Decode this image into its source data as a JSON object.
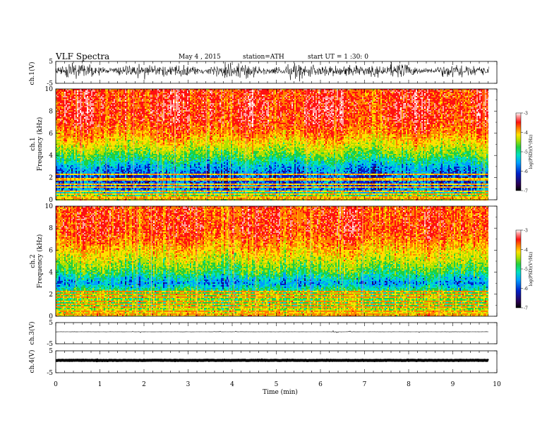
{
  "header": {
    "title": "VLF  Spectra",
    "date": "May 4  , 2015",
    "station": "station=ATH",
    "start": "start  UT  =  1  :30: 0"
  },
  "chart_data": {
    "type": "heatmap",
    "x": {
      "label": "Time  (min)",
      "range": [
        0,
        10
      ],
      "ticks": [
        "0",
        "1",
        "2",
        "3",
        "4",
        "5",
        "6",
        "7",
        "8",
        "9",
        "10"
      ],
      "data_end": 9.82
    },
    "panels": [
      {
        "kind": "waveform",
        "ylabel": "ch.1(V)",
        "ylim": [
          -5,
          5
        ],
        "yticks": [
          "5",
          "-5"
        ],
        "trace": "noisy-broadband",
        "amplitude": 1.0
      },
      {
        "kind": "spectrogram",
        "ylabel": "ch.1",
        "ylabel2": "Frequency  (kHz)",
        "ylim": [
          0,
          10
        ],
        "yticks": [
          "10",
          "8",
          "6",
          "4",
          "2",
          "0"
        ],
        "colorbar": {
          "label": "log(PSD)(V²/Hz)",
          "range": [
            -7,
            -3
          ],
          "ticks": [
            "-3",
            "-4",
            "-5",
            "-6",
            "-7"
          ]
        },
        "profile_khz": [
          0,
          1,
          2,
          3,
          4,
          5,
          6,
          7,
          8,
          10
        ],
        "profile_logpsd": [
          -4.6,
          -6.3,
          -6.5,
          -6.1,
          -5.3,
          -4.7,
          -4.2,
          -3.9,
          -3.8,
          -3.9
        ],
        "lines_khz": [
          0.25,
          0.55,
          0.85,
          1.15,
          1.5,
          1.9,
          2.3
        ],
        "lines_logpsd": -4.4
      },
      {
        "kind": "spectrogram",
        "ylabel": "ch.2",
        "ylabel2": "Frequency  (kHz)",
        "ylim": [
          0,
          10
        ],
        "yticks": [
          "10",
          "8",
          "6",
          "4",
          "2",
          "0"
        ],
        "colorbar": {
          "label": "log(PSD)(V²/Hz)",
          "range": [
            -7,
            -3
          ],
          "ticks": [
            "-3",
            "-4",
            "-5",
            "-6",
            "-7"
          ]
        },
        "profile_khz": [
          0,
          1,
          2,
          3,
          4,
          5,
          6,
          7,
          8,
          10
        ],
        "profile_logpsd": [
          -4.4,
          -5.3,
          -5.1,
          -6.2,
          -5.4,
          -4.9,
          -4.5,
          -4.1,
          -3.9,
          -4.0
        ],
        "lines_khz": [
          0.2,
          0.5,
          0.8,
          1.1,
          1.4,
          1.7,
          2.0,
          2.3
        ],
        "lines_logpsd": -4.3
      },
      {
        "kind": "waveform",
        "ylabel": "ch.3(V)",
        "ylim": [
          -5,
          5
        ],
        "yticks": [
          "5",
          "-5"
        ],
        "trace": "flat",
        "amplitude": 0.05
      },
      {
        "kind": "waveform",
        "ylabel": "ch.4(V)",
        "ylim": [
          -5,
          5
        ],
        "yticks": [
          "5",
          "-5"
        ],
        "trace": "thick-flat",
        "amplitude": 0.2
      }
    ],
    "colormap": [
      "#2a0050",
      "#0020c8",
      "#00a0ff",
      "#00e0c0",
      "#20d040",
      "#b0e000",
      "#ffe000",
      "#ff8000",
      "#ff1010",
      "#ffa0a0",
      "#ffffff"
    ]
  }
}
